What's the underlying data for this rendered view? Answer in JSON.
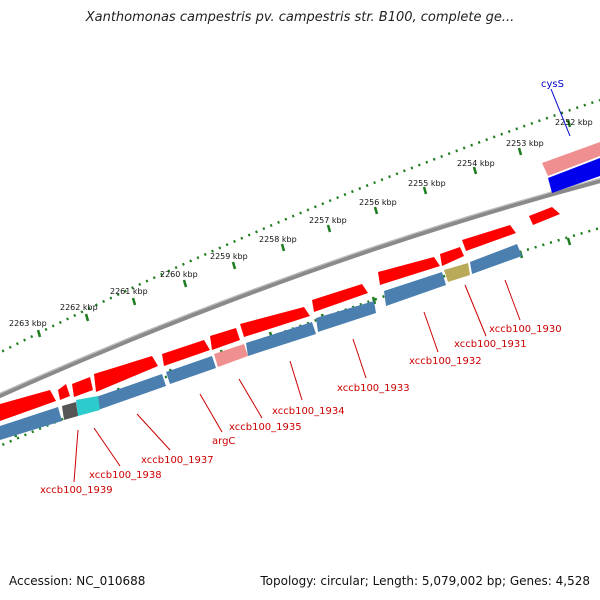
{
  "title": "Xanthomonas campestris pv. campestris str. B100, complete ge...",
  "footer": {
    "accession": "Accession: NC_010688",
    "stats": "Topology: circular; Length: 5,079,002 bp; Genes: 4,528"
  },
  "colors": {
    "background": "#ffffff",
    "backbone": "#808080",
    "tick": "#1e7d1e",
    "cds_forward": "#ff0000",
    "cds_forward_light": "#ef8f8f",
    "cds_reverse": "#4a7fb0",
    "cds_reverse_cyan": "#2ccccc",
    "cds_reverse_olive": "#b8aa58",
    "cds_reverse_gray": "#555555",
    "highlight_blue": "#0000ee",
    "label_red": "#cc0000",
    "label_blue": "#0000cc"
  },
  "kbp_labels": [
    "2252 kbp",
    "2253 kbp",
    "2254 kbp",
    "2255 kbp",
    "2256 kbp",
    "2257 kbp",
    "2258 kbp",
    "2259 kbp",
    "2260 kbp",
    "2261 kbp",
    "2262 kbp",
    "2263 kbp"
  ],
  "gene_labels": [
    {
      "text": "cysS",
      "color": "blue"
    },
    {
      "text": "xccb100_1930",
      "color": "red"
    },
    {
      "text": "xccb100_1931",
      "color": "red"
    },
    {
      "text": "xccb100_1932",
      "color": "red"
    },
    {
      "text": "xccb100_1933",
      "color": "red"
    },
    {
      "text": "xccb100_1934",
      "color": "red"
    },
    {
      "text": "xccb100_1935",
      "color": "red"
    },
    {
      "text": "argC",
      "color": "red"
    },
    {
      "text": "xccb100_1937",
      "color": "red"
    },
    {
      "text": "xccb100_1938",
      "color": "red"
    },
    {
      "text": "xccb100_1939",
      "color": "red"
    }
  ]
}
